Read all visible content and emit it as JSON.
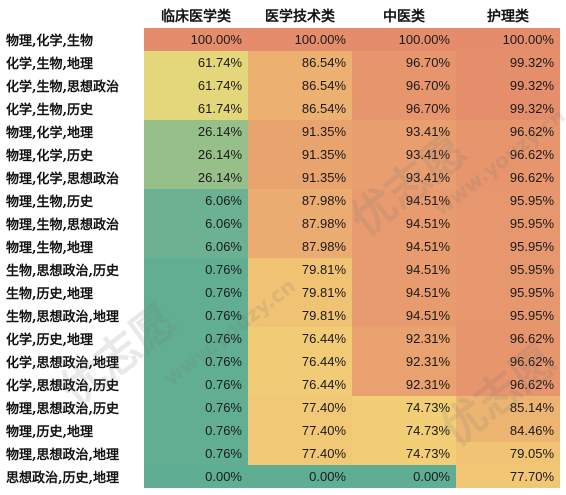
{
  "chart_data": {
    "type": "heatmap",
    "columns": [
      "临床医学类",
      "医学技术类",
      "中医类",
      "护理类"
    ],
    "rows": [
      {
        "label": "物理,化学,生物",
        "values": [
          "100.00%",
          "100.00%",
          "100.00%",
          "100.00%"
        ]
      },
      {
        "label": "化学,生物,地理",
        "values": [
          "61.74%",
          "86.54%",
          "96.70%",
          "99.32%"
        ]
      },
      {
        "label": "化学,生物,思想政治",
        "values": [
          "61.74%",
          "86.54%",
          "96.70%",
          "99.32%"
        ]
      },
      {
        "label": "化学,生物,历史",
        "values": [
          "61.74%",
          "86.54%",
          "96.70%",
          "99.32%"
        ]
      },
      {
        "label": "物理,化学,地理",
        "values": [
          "26.14%",
          "91.35%",
          "93.41%",
          "96.62%"
        ]
      },
      {
        "label": "物理,化学,历史",
        "values": [
          "26.14%",
          "91.35%",
          "93.41%",
          "96.62%"
        ]
      },
      {
        "label": "物理,化学,思想政治",
        "values": [
          "26.14%",
          "91.35%",
          "93.41%",
          "96.62%"
        ]
      },
      {
        "label": "物理,生物,历史",
        "values": [
          "6.06%",
          "87.98%",
          "94.51%",
          "95.95%"
        ]
      },
      {
        "label": "物理,生物,思想政治",
        "values": [
          "6.06%",
          "87.98%",
          "94.51%",
          "95.95%"
        ]
      },
      {
        "label": "物理,生物,地理",
        "values": [
          "6.06%",
          "87.98%",
          "94.51%",
          "95.95%"
        ]
      },
      {
        "label": "生物,思想政治,历史",
        "values": [
          "0.76%",
          "79.81%",
          "94.51%",
          "95.95%"
        ]
      },
      {
        "label": "生物,历史,地理",
        "values": [
          "0.76%",
          "79.81%",
          "94.51%",
          "95.95%"
        ]
      },
      {
        "label": "生物,思想政治,地理",
        "values": [
          "0.76%",
          "79.81%",
          "94.51%",
          "95.95%"
        ]
      },
      {
        "label": "化学,历史,地理",
        "values": [
          "0.76%",
          "76.44%",
          "92.31%",
          "96.62%"
        ]
      },
      {
        "label": "化学,思想政治,地理",
        "values": [
          "0.76%",
          "76.44%",
          "92.31%",
          "96.62%"
        ]
      },
      {
        "label": "化学,思想政治,历史",
        "values": [
          "0.76%",
          "76.44%",
          "92.31%",
          "96.62%"
        ]
      },
      {
        "label": "物理,思想政治,历史",
        "values": [
          "0.76%",
          "77.40%",
          "74.73%",
          "85.14%"
        ]
      },
      {
        "label": "物理,历史,地理",
        "values": [
          "0.76%",
          "77.40%",
          "74.73%",
          "84.46%"
        ]
      },
      {
        "label": "物理,思想政治,地理",
        "values": [
          "0.76%",
          "77.40%",
          "74.73%",
          "79.05%"
        ]
      },
      {
        "label": "思想政治,历史,地理",
        "values": [
          "0.00%",
          "0.00%",
          "0.00%",
          "77.70%"
        ]
      }
    ],
    "color_scale": {
      "low": "#5fad93",
      "mid": "#f5dc78",
      "high": "#e48c6c"
    }
  },
  "watermark": {
    "brand": "优志愿",
    "url": "www.youzy.cn"
  }
}
